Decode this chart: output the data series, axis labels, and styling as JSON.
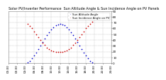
{
  "title": "Solar PV/Inverter Performance  Sun Altitude Angle & Sun Incidence Angle on PV Panels",
  "legend_labels": [
    "Sun Altitude Angle",
    "Sun Incidence Angle on PV"
  ],
  "legend_colors": [
    "#0000cc",
    "#cc0000"
  ],
  "background_color": "#ffffff",
  "plot_bg_color": "#ffffff",
  "grid_color": "#bbbbbb",
  "ylim": [
    0,
    90
  ],
  "ytick_vals": [
    0,
    10,
    20,
    30,
    40,
    50,
    60,
    70,
    80,
    90
  ],
  "xlim": [
    0,
    24
  ],
  "xtick_vals": [
    0,
    2,
    4,
    6,
    8,
    10,
    12,
    14,
    16,
    18,
    20,
    22,
    24
  ],
  "title_fontsize": 3.5,
  "tick_fontsize": 3.0,
  "blue_x": [
    4.5,
    5.0,
    5.5,
    6.0,
    6.5,
    7.0,
    7.5,
    8.0,
    8.5,
    9.0,
    9.5,
    10.0,
    10.5,
    11.0,
    11.5,
    12.0,
    12.5,
    13.0,
    13.5,
    14.0,
    14.5,
    15.0,
    15.5,
    16.0,
    16.5,
    17.0,
    17.5,
    18.0,
    18.5,
    19.0,
    19.5
  ],
  "blue_y": [
    1,
    4,
    8,
    13,
    18,
    24,
    30,
    36,
    42,
    48,
    53,
    58,
    62,
    65,
    67,
    68,
    67,
    65,
    62,
    58,
    53,
    48,
    42,
    36,
    30,
    24,
    18,
    13,
    8,
    4,
    1
  ],
  "red_x": [
    4.5,
    5.0,
    5.5,
    6.0,
    6.5,
    7.0,
    7.5,
    8.0,
    8.5,
    9.0,
    9.5,
    10.0,
    10.5,
    11.0,
    11.5,
    12.0,
    12.5,
    13.0,
    13.5,
    14.0,
    14.5,
    15.0,
    15.5,
    16.0,
    16.5,
    17.0,
    17.5,
    18.0,
    18.5,
    19.0,
    19.5
  ],
  "red_y": [
    68,
    64,
    60,
    55,
    50,
    45,
    40,
    35,
    31,
    27,
    24,
    22,
    21,
    20,
    20,
    20,
    20,
    21,
    22,
    24,
    27,
    31,
    35,
    40,
    45,
    50,
    55,
    60,
    64,
    68,
    72
  ],
  "marker_size": 1.5
}
